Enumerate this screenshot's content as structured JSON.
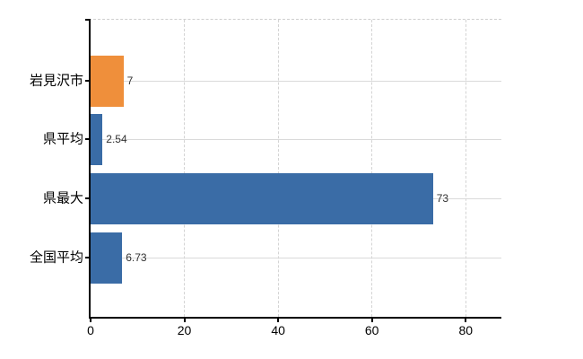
{
  "chart_data": {
    "type": "bar",
    "orientation": "horizontal",
    "title": "",
    "xlabel": "",
    "ylabel": "",
    "categories": [
      "岩見沢市",
      "県平均",
      "県最大",
      "全国平均"
    ],
    "values": [
      7,
      2.54,
      73,
      6.73
    ],
    "value_labels": [
      "7",
      "2.54",
      "73",
      "6.73"
    ],
    "x_ticks": [
      0,
      20,
      40,
      60,
      80
    ],
    "x_tick_labels": [
      "0",
      "20",
      "40",
      "60",
      "80"
    ],
    "xlim": [
      0,
      87.6
    ],
    "grid": {
      "vertical": "dashed at each x tick",
      "horizontal": "solid line at each category center",
      "top_border": "dashed"
    },
    "legend": null,
    "bar_colors": [
      "#ef8f3b",
      "#3a6ca6",
      "#3a6ca6",
      "#3a6ca6"
    ]
  },
  "colors": {
    "bar_orange": "#ef8f3b",
    "bar_blue": "#3a6ca6",
    "axis": "#000000",
    "grid_line": "#dadada",
    "grid_dash": "#d4d4d4",
    "category_text": "#000000",
    "value_text": "#333333",
    "background": "#ffffff"
  }
}
